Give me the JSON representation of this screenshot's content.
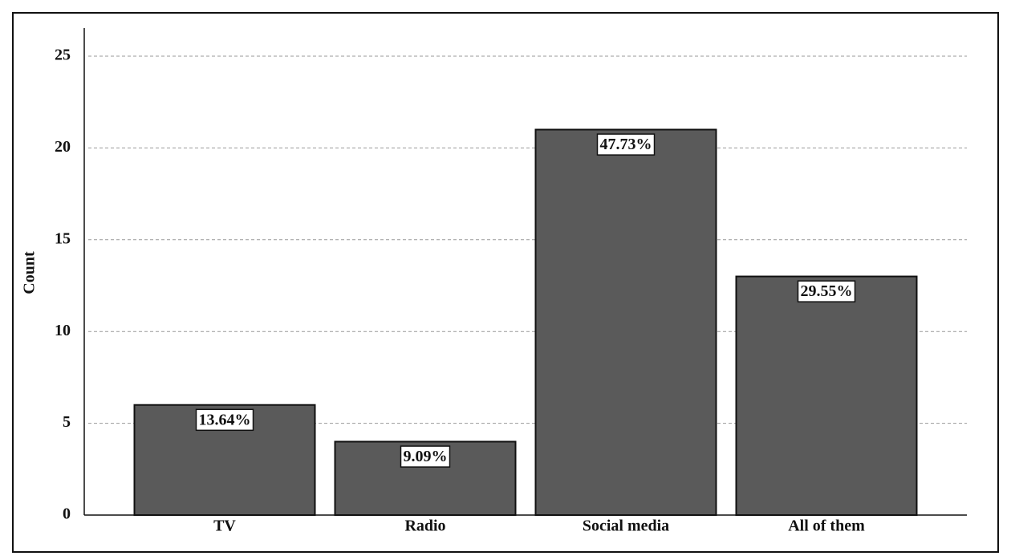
{
  "chart_data": {
    "type": "bar",
    "y_label": "Count",
    "categories": [
      "TV",
      "Radio",
      "Social media",
      "All of them"
    ],
    "values": [
      6,
      4,
      21,
      13
    ],
    "percent_labels": [
      "13.64%",
      "9.09%",
      "47.73%",
      "29.55%"
    ],
    "color": "#5a5a5a",
    "ylim": [
      0,
      25
    ],
    "yticks": [
      0,
      5,
      10,
      15,
      20,
      25
    ],
    "grid": true
  }
}
